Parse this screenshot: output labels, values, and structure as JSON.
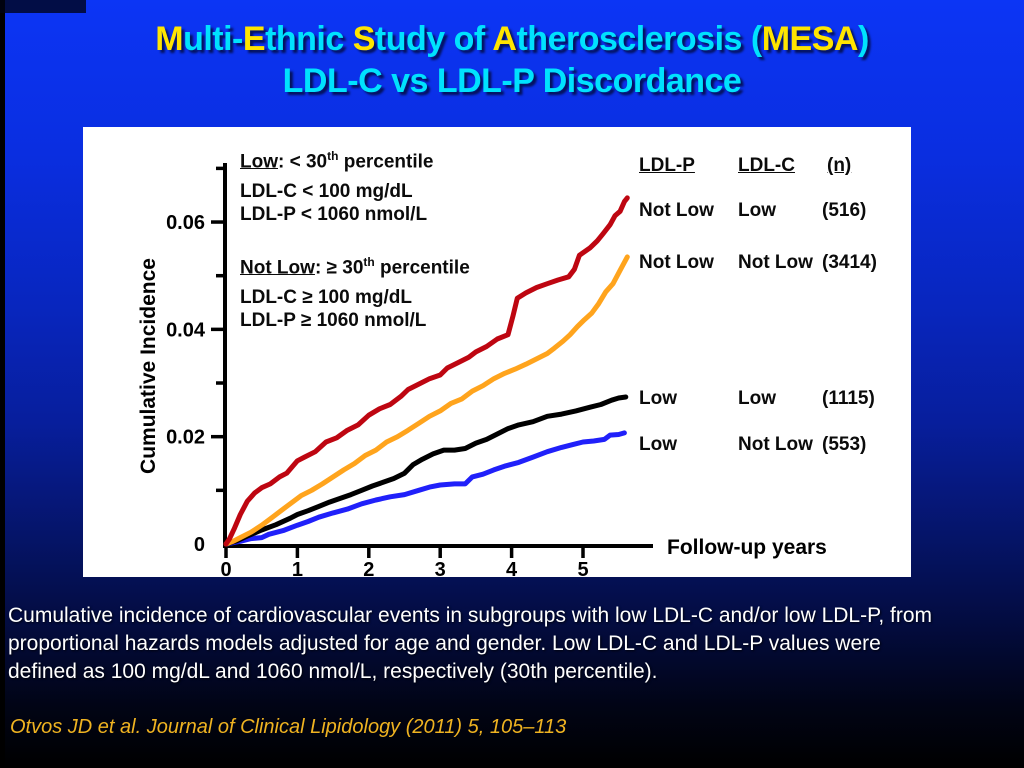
{
  "slide": {
    "title": {
      "line1_segments": [
        {
          "text": "M",
          "color": "yellow"
        },
        {
          "text": "ulti-",
          "color": "cyan"
        },
        {
          "text": "E",
          "color": "yellow"
        },
        {
          "text": "thnic ",
          "color": "cyan"
        },
        {
          "text": "S",
          "color": "yellow"
        },
        {
          "text": "tudy of ",
          "color": "cyan"
        },
        {
          "text": "A",
          "color": "yellow"
        },
        {
          "text": "therosclerosis (",
          "color": "cyan"
        },
        {
          "text": "MESA",
          "color": "yellow"
        },
        {
          "text": ")",
          "color": "cyan"
        }
      ],
      "line2": "LDL-C vs LDL-P Discordance"
    },
    "caption_lines": [
      "Cumulative incidence of cardiovascular events in subgroups with low LDL-C and/or low LDL-P, from",
      "proportional hazards models adjusted for age and gender. Low LDL-C and LDL-P values were",
      "defined as 100 mg/dL and 1060 nmol/L, respectively (30th percentile)."
    ],
    "citation": "Otvos JD et al. Journal of Clinical Lipidology (2011) 5, 105–113"
  },
  "colors": {
    "title_cyan": "#00E2FE",
    "title_yellow": "#FFE500",
    "citation_yellow": "#EFB321",
    "background_top": "#0C35F5",
    "background_bottom": "#000000",
    "panel": "#FFFFFF"
  },
  "chart_data": {
    "type": "line",
    "title": "",
    "xlabel": "Follow-up years",
    "ylabel": "Cumulative Incidence",
    "xlim": [
      0,
      6
    ],
    "ylim": [
      0,
      0.07
    ],
    "grid": false,
    "x_axis": {
      "ticks": [
        {
          "v": 0,
          "label": "0"
        },
        {
          "v": 1,
          "label": "1"
        },
        {
          "v": 2,
          "label": "2"
        },
        {
          "v": 3,
          "label": "3"
        },
        {
          "v": 4,
          "label": "4"
        },
        {
          "v": 5,
          "label": "5"
        }
      ]
    },
    "y_axis": {
      "major": [
        {
          "v": 0,
          "label": "0"
        },
        {
          "v": 0.02,
          "label": "0.02"
        },
        {
          "v": 0.04,
          "label": "0.04"
        },
        {
          "v": 0.06,
          "label": "0.06"
        }
      ],
      "minor": [
        0.01,
        0.03,
        0.05,
        0.07
      ]
    },
    "legend": {
      "low": {
        "term": "Low",
        "mid": ": < 30",
        "sup": "th",
        "tail": " percentile",
        "line2": "LDL-C < 100 mg/dL",
        "line3": "LDL-P < 1060 nmol/L"
      },
      "not_low": {
        "term": "Not Low",
        "mid": ": ≥ 30",
        "sup": "th",
        "tail": " percentile",
        "line2": "LDL-C ≥ 100 mg/dL",
        "line3": "LDL-P ≥ 1060 nmol/L"
      }
    },
    "groups_table": {
      "header": [
        "LDL-P",
        "LDL-C",
        "(n)"
      ],
      "rows": [
        {
          "ldl_p": "Not Low",
          "ldl_c": "Low",
          "n": "(516)"
        },
        {
          "ldl_p": "Not Low",
          "ldl_c": "Not Low",
          "n": "(3414)"
        },
        {
          "ldl_p": "Low",
          "ldl_c": "Low",
          "n": "(1115)"
        },
        {
          "ldl_p": "Low",
          "ldl_c": "Not Low",
          "n": "(553)"
        }
      ]
    },
    "series": [
      {
        "id": "ldlp-notlow-ldlc-low",
        "name": "LDL-P Not Low / LDL-C Low (n=516)",
        "color": "#BE0611",
        "points": [
          [
            0,
            0
          ],
          [
            0.05,
            0.001
          ],
          [
            0.12,
            0.003
          ],
          [
            0.2,
            0.0055
          ],
          [
            0.3,
            0.008
          ],
          [
            0.4,
            0.0095
          ],
          [
            0.5,
            0.0105
          ],
          [
            0.62,
            0.0112
          ],
          [
            0.75,
            0.0125
          ],
          [
            0.85,
            0.0132
          ],
          [
            1.0,
            0.0155
          ],
          [
            1.1,
            0.0162
          ],
          [
            1.25,
            0.0172
          ],
          [
            1.4,
            0.019
          ],
          [
            1.55,
            0.0198
          ],
          [
            1.7,
            0.0212
          ],
          [
            1.85,
            0.0222
          ],
          [
            2.0,
            0.024
          ],
          [
            2.15,
            0.0252
          ],
          [
            2.3,
            0.026
          ],
          [
            2.45,
            0.0275
          ],
          [
            2.55,
            0.0288
          ],
          [
            2.7,
            0.0298
          ],
          [
            2.85,
            0.0308
          ],
          [
            3.0,
            0.0315
          ],
          [
            3.1,
            0.0328
          ],
          [
            3.25,
            0.0338
          ],
          [
            3.4,
            0.0348
          ],
          [
            3.5,
            0.0358
          ],
          [
            3.65,
            0.0368
          ],
          [
            3.8,
            0.0382
          ],
          [
            3.95,
            0.039
          ],
          [
            4.02,
            0.0425
          ],
          [
            4.08,
            0.0458
          ],
          [
            4.2,
            0.0468
          ],
          [
            4.35,
            0.0478
          ],
          [
            4.5,
            0.0485
          ],
          [
            4.65,
            0.0492
          ],
          [
            4.8,
            0.0498
          ],
          [
            4.88,
            0.0512
          ],
          [
            4.95,
            0.0538
          ],
          [
            5.1,
            0.0552
          ],
          [
            5.2,
            0.0565
          ],
          [
            5.28,
            0.0578
          ],
          [
            5.38,
            0.0595
          ],
          [
            5.45,
            0.0612
          ],
          [
            5.52,
            0.062
          ],
          [
            5.58,
            0.0638
          ],
          [
            5.62,
            0.0645
          ]
        ]
      },
      {
        "id": "ldlp-notlow-ldlc-notlow",
        "name": "LDL-P Not Low / LDL-C Not Low (n=3414)",
        "color": "#FFA41D",
        "points": [
          [
            0,
            0
          ],
          [
            0.1,
            0.0005
          ],
          [
            0.2,
            0.0012
          ],
          [
            0.35,
            0.0022
          ],
          [
            0.5,
            0.0035
          ],
          [
            0.65,
            0.005
          ],
          [
            0.8,
            0.0065
          ],
          [
            0.95,
            0.008
          ],
          [
            1.05,
            0.009
          ],
          [
            1.2,
            0.01
          ],
          [
            1.35,
            0.0112
          ],
          [
            1.5,
            0.0125
          ],
          [
            1.65,
            0.0138
          ],
          [
            1.8,
            0.015
          ],
          [
            1.95,
            0.0165
          ],
          [
            2.1,
            0.0175
          ],
          [
            2.25,
            0.019
          ],
          [
            2.4,
            0.02
          ],
          [
            2.55,
            0.0212
          ],
          [
            2.7,
            0.0225
          ],
          [
            2.85,
            0.0238
          ],
          [
            3.0,
            0.0248
          ],
          [
            3.15,
            0.0262
          ],
          [
            3.3,
            0.027
          ],
          [
            3.45,
            0.0285
          ],
          [
            3.6,
            0.0295
          ],
          [
            3.75,
            0.0308
          ],
          [
            3.9,
            0.0318
          ],
          [
            4.05,
            0.0326
          ],
          [
            4.2,
            0.0335
          ],
          [
            4.35,
            0.0345
          ],
          [
            4.5,
            0.0355
          ],
          [
            4.6,
            0.0365
          ],
          [
            4.72,
            0.0378
          ],
          [
            4.82,
            0.039
          ],
          [
            4.92,
            0.0405
          ],
          [
            5.02,
            0.0418
          ],
          [
            5.12,
            0.043
          ],
          [
            5.22,
            0.0448
          ],
          [
            5.32,
            0.047
          ],
          [
            5.42,
            0.0485
          ],
          [
            5.52,
            0.051
          ],
          [
            5.62,
            0.0535
          ]
        ]
      },
      {
        "id": "ldlp-low-ldlc-low",
        "name": "LDL-P Low / LDL-C Low (n=1115)",
        "color": "#000000",
        "points": [
          [
            0,
            0
          ],
          [
            0.15,
            0.0006
          ],
          [
            0.3,
            0.0015
          ],
          [
            0.5,
            0.0026
          ],
          [
            0.7,
            0.0036
          ],
          [
            0.9,
            0.0048
          ],
          [
            1.0,
            0.0055
          ],
          [
            1.15,
            0.0062
          ],
          [
            1.3,
            0.007
          ],
          [
            1.45,
            0.0078
          ],
          [
            1.6,
            0.0085
          ],
          [
            1.75,
            0.0092
          ],
          [
            1.9,
            0.01
          ],
          [
            2.05,
            0.0108
          ],
          [
            2.2,
            0.0115
          ],
          [
            2.35,
            0.0122
          ],
          [
            2.5,
            0.0132
          ],
          [
            2.62,
            0.0148
          ],
          [
            2.75,
            0.0158
          ],
          [
            2.9,
            0.0168
          ],
          [
            3.05,
            0.0175
          ],
          [
            3.2,
            0.0175
          ],
          [
            3.35,
            0.0178
          ],
          [
            3.5,
            0.0188
          ],
          [
            3.65,
            0.0195
          ],
          [
            3.8,
            0.0205
          ],
          [
            3.95,
            0.0215
          ],
          [
            4.1,
            0.0222
          ],
          [
            4.3,
            0.0228
          ],
          [
            4.5,
            0.0238
          ],
          [
            4.7,
            0.0242
          ],
          [
            4.9,
            0.0248
          ],
          [
            5.1,
            0.0255
          ],
          [
            5.25,
            0.026
          ],
          [
            5.4,
            0.0268
          ],
          [
            5.5,
            0.0272
          ],
          [
            5.6,
            0.0274
          ]
        ]
      },
      {
        "id": "ldlp-low-ldlc-notlow",
        "name": "LDL-P Low / LDL-C Not Low (n=553)",
        "color": "#2020FA",
        "points": [
          [
            0,
            0
          ],
          [
            0.2,
            0.0005
          ],
          [
            0.35,
            0.001
          ],
          [
            0.5,
            0.0012
          ],
          [
            0.6,
            0.0018
          ],
          [
            0.8,
            0.0025
          ],
          [
            1.0,
            0.0035
          ],
          [
            1.15,
            0.0042
          ],
          [
            1.3,
            0.005
          ],
          [
            1.5,
            0.0058
          ],
          [
            1.7,
            0.0065
          ],
          [
            1.9,
            0.0075
          ],
          [
            2.1,
            0.0082
          ],
          [
            2.3,
            0.0088
          ],
          [
            2.5,
            0.0092
          ],
          [
            2.7,
            0.01
          ],
          [
            2.85,
            0.0106
          ],
          [
            3.0,
            0.011
          ],
          [
            3.2,
            0.0112
          ],
          [
            3.35,
            0.0112
          ],
          [
            3.45,
            0.0125
          ],
          [
            3.6,
            0.013
          ],
          [
            3.75,
            0.0138
          ],
          [
            3.9,
            0.0145
          ],
          [
            4.1,
            0.0152
          ],
          [
            4.3,
            0.0162
          ],
          [
            4.5,
            0.0172
          ],
          [
            4.7,
            0.018
          ],
          [
            4.85,
            0.0185
          ],
          [
            5.0,
            0.019
          ],
          [
            5.15,
            0.0192
          ],
          [
            5.3,
            0.0195
          ],
          [
            5.38,
            0.0203
          ],
          [
            5.5,
            0.0204
          ],
          [
            5.58,
            0.0207
          ]
        ]
      }
    ]
  }
}
